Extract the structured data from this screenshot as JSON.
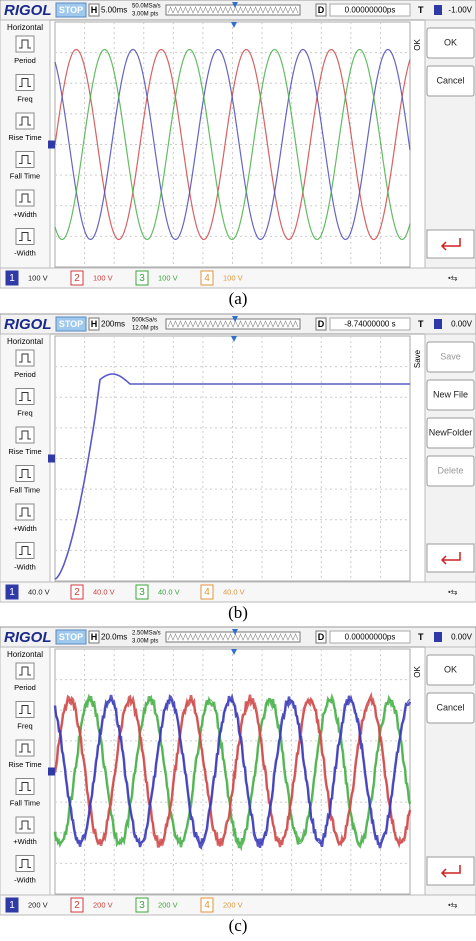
{
  "panels": [
    {
      "top_bar": {
        "brand": "RIGOL",
        "status": "STOP",
        "h_label": "H",
        "timebase": "5.00ms",
        "sample_rate": "50.0MSa/s",
        "points": "3.00M pts",
        "d_label": "D",
        "delay": "0.00000000ps",
        "t_label": "T",
        "trigger_level": "-1.00V"
      },
      "left_menu": {
        "header": "Horizontal",
        "items": [
          "Period",
          "Freq",
          "Rise Time",
          "Fall Time",
          "+Width",
          "-Width"
        ]
      },
      "right_tab": "OK",
      "right_menu": [
        "OK",
        "Cancel"
      ],
      "channels": [
        {
          "number": "1",
          "scale": "100 V"
        },
        {
          "number": "2",
          "scale": "100 V"
        },
        {
          "number": "3",
          "scale": "100 V"
        },
        {
          "number": "4",
          "scale": "100 V"
        }
      ],
      "caption": "(a)"
    },
    {
      "top_bar": {
        "brand": "RIGOL",
        "status": "STOP",
        "h_label": "H",
        "timebase": "200ms",
        "sample_rate": "500kSa/s",
        "points": "12.0M pts",
        "d_label": "D",
        "delay": "-8.74000000 s",
        "t_label": "T",
        "trigger_level": "0.00V"
      },
      "left_menu": {
        "header": "Horizontal",
        "items": [
          "Period",
          "Freq",
          "Rise Time",
          "Fall Time",
          "+Width",
          "-Width"
        ]
      },
      "right_tab": "Save",
      "right_menu": [
        "Save",
        "New File",
        "NewFolder",
        "Delete"
      ],
      "channels": [
        {
          "number": "1",
          "scale": "40.0 V"
        },
        {
          "number": "2",
          "scale": "40.0 V"
        },
        {
          "number": "3",
          "scale": "40.0 V"
        },
        {
          "number": "4",
          "scale": "40.0 V"
        }
      ],
      "caption": "(b)"
    },
    {
      "top_bar": {
        "brand": "RIGOL",
        "status": "STOP",
        "h_label": "H",
        "timebase": "20.0ms",
        "sample_rate": "2.50MSa/s",
        "points": "3.00M pts",
        "d_label": "D",
        "delay": "0.00000000ps",
        "t_label": "T",
        "trigger_level": "0.00V"
      },
      "left_menu": {
        "header": "Horizontal",
        "items": [
          "Period",
          "Freq",
          "Rise Time",
          "Fall Time",
          "+Width",
          "-Width"
        ]
      },
      "right_tab": "OK",
      "right_menu": [
        "OK",
        "Cancel"
      ],
      "channels": [
        {
          "number": "1",
          "scale": "200 V"
        },
        {
          "number": "2",
          "scale": "200 V"
        },
        {
          "number": "3",
          "scale": "200 V"
        },
        {
          "number": "4",
          "scale": "200 V"
        }
      ],
      "caption": "(c)"
    }
  ]
}
